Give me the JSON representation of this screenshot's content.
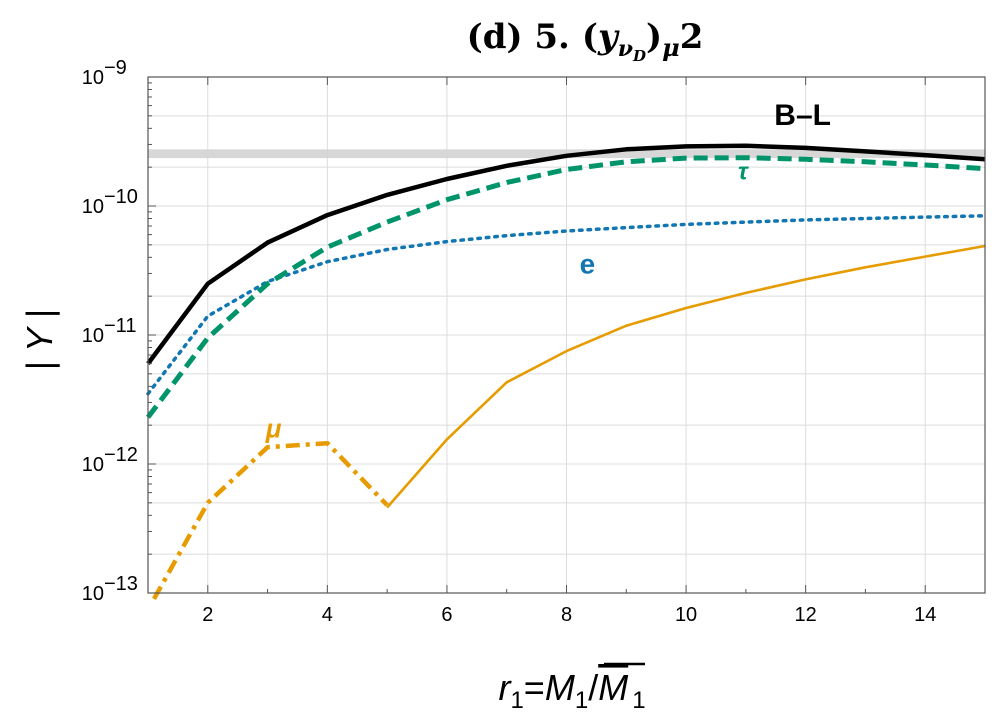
{
  "chart_data": {
    "type": "line",
    "title": {
      "prefix": "(d) 5.",
      "open": "(",
      "y": "y",
      "nu": "ν",
      "D": "D",
      "close": ")",
      "mu": "μ",
      "two": "2"
    },
    "xlabel": {
      "r": "r",
      "r_sub": "1",
      "eq": "=",
      "M": "M",
      "M_sub": "1",
      "slash": "/",
      "Mbar": "M",
      "Mbar_sub": "1"
    },
    "ylabel": "| Y |",
    "x_axis": {
      "min": 1,
      "max": 15,
      "ticks": [
        2,
        4,
        6,
        8,
        10,
        12,
        14
      ],
      "tick_labels": [
        "2",
        "4",
        "6",
        "8",
        "10",
        "12",
        "14"
      ]
    },
    "y_axis": {
      "scale": "log",
      "min_exp": -13,
      "max_exp": -9,
      "tick_exps": [
        -13,
        -12,
        -11,
        -10,
        -9
      ],
      "tick_bases": [
        "10",
        "10",
        "10",
        "10",
        "10"
      ],
      "tick_exp_labels": [
        "−13",
        "−12",
        "−11",
        "−10",
        "−9"
      ]
    },
    "grid": true,
    "band": {
      "y_low": 2.35e-10,
      "y_high": 2.75e-10,
      "color": "#d3d3d3"
    },
    "series": [
      {
        "name": "B–L",
        "color": "#000000",
        "style": "solid-thick",
        "x": [
          1,
          2,
          3,
          4,
          5,
          6,
          7,
          8,
          9,
          10,
          11,
          12,
          13,
          14,
          15
        ],
        "y": [
          6e-12,
          2.5e-11,
          5.2e-11,
          8.5e-11,
          1.22e-10,
          1.62e-10,
          2.05e-10,
          2.45e-10,
          2.75e-10,
          2.9e-10,
          2.93e-10,
          2.82e-10,
          2.65e-10,
          2.48e-10,
          2.3e-10
        ]
      },
      {
        "name": "τ",
        "color": "#00946b",
        "style": "dashed",
        "x": [
          1,
          2,
          3,
          4,
          5,
          6,
          7,
          8,
          9,
          10,
          11,
          12,
          13,
          14,
          15
        ],
        "y": [
          2.3e-12,
          9.5e-12,
          2.5e-11,
          4.8e-11,
          7.5e-11,
          1.12e-10,
          1.52e-10,
          1.92e-10,
          2.2e-10,
          2.35e-10,
          2.37e-10,
          2.3e-10,
          2.2e-10,
          2.08e-10,
          1.95e-10
        ]
      },
      {
        "name": "e",
        "color": "#1276b2",
        "style": "dotted",
        "x": [
          1,
          2,
          3,
          4,
          5,
          6,
          7,
          8,
          9,
          10,
          11,
          12,
          13,
          14,
          15
        ],
        "y": [
          3.5e-12,
          1.4e-11,
          2.6e-11,
          3.7e-11,
          4.6e-11,
          5.3e-11,
          5.9e-11,
          6.4e-11,
          6.8e-11,
          7.2e-11,
          7.5e-11,
          7.8e-11,
          8e-11,
          8.2e-11,
          8.4e-11
        ]
      },
      {
        "name": "μ",
        "color": "#e69c00",
        "style": "dash-dot",
        "x": [
          1.1,
          2,
          3,
          4,
          5
        ],
        "y": [
          9e-14,
          5e-13,
          1.35e-12,
          1.45e-12,
          4.8e-13
        ]
      },
      {
        "name": "μ",
        "color": "#e69c00",
        "style": "solid-thin",
        "x": [
          5,
          6,
          7,
          8,
          9,
          10,
          11,
          12,
          13,
          14,
          15
        ],
        "y": [
          4.6e-13,
          1.55e-12,
          4.3e-12,
          7.5e-12,
          1.18e-11,
          1.62e-11,
          2.12e-11,
          2.7e-11,
          3.35e-11,
          4.05e-11,
          4.9e-11
        ]
      }
    ],
    "annotations": [
      {
        "text": "B–L",
        "x": 11.95,
        "y": 4.25e-10,
        "color": "#000000",
        "weight": "bold",
        "style": "normal",
        "size": 30
      },
      {
        "text": "τ",
        "x": 10.95,
        "y": 1.6e-10,
        "color": "#00946b",
        "weight": "bold",
        "style": "italic",
        "size": 24
      },
      {
        "text": "e",
        "x": 8.35,
        "y": 3e-11,
        "color": "#1276b2",
        "weight": "bold",
        "style": "normal",
        "size": 28
      },
      {
        "text": "μ",
        "x": 3.1,
        "y": 1.6e-12,
        "color": "#e69c00",
        "weight": "bold",
        "style": "italic",
        "size": 26
      }
    ]
  }
}
